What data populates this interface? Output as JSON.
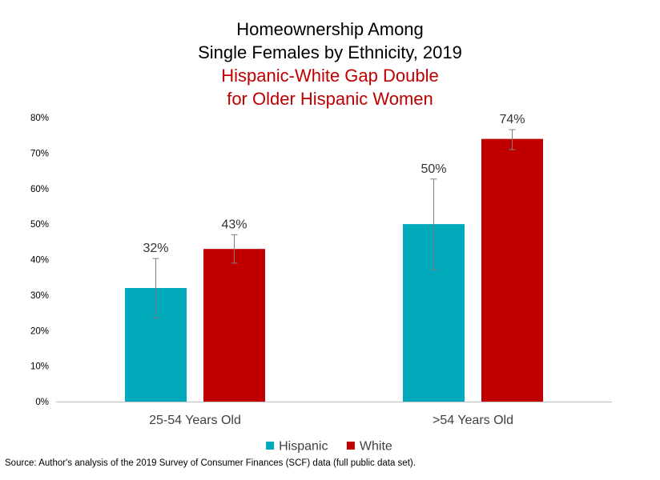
{
  "chart_data": {
    "type": "bar",
    "title_lines": [
      "Homeownership Among",
      "Single Females by Ethnicity, 2019"
    ],
    "subtitle_lines": [
      "Hispanic-White Gap Double",
      "for Older Hispanic Women"
    ],
    "categories": [
      "25-54 Years Old",
      ">54 Years Old"
    ],
    "series": [
      {
        "name": "Hispanic",
        "color": "#00aabb",
        "values": [
          32,
          50
        ],
        "labels": [
          "32%",
          "50%"
        ],
        "error_low": [
          23.5,
          37.2
        ],
        "error_high": [
          40.3,
          62.7
        ]
      },
      {
        "name": "White",
        "color": "#c00000",
        "values": [
          43,
          74
        ],
        "labels": [
          "43%",
          "74%"
        ],
        "error_low": [
          39,
          71
        ],
        "error_high": [
          47,
          76.6
        ]
      }
    ],
    "ylim": [
      0,
      80
    ],
    "yticks": [
      0,
      10,
      20,
      30,
      40,
      50,
      60,
      70,
      80
    ],
    "ytick_labels": [
      "0%",
      "10%",
      "20%",
      "30%",
      "40%",
      "50%",
      "60%",
      "70%",
      "80%"
    ],
    "grid": false,
    "legend_position": "bottom-center",
    "source": "Source: Author's analysis of the 2019 Survey of Consumer Finances (SCF) data (full public data set)."
  }
}
